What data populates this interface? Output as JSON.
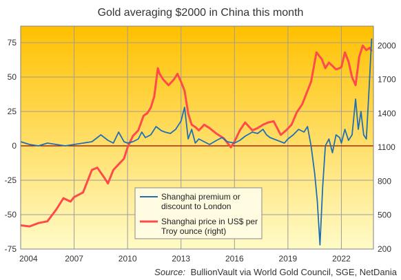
{
  "chart_data": {
    "type": "line",
    "title": "Gold averaging $2000 in China this month",
    "source_label": "Source:",
    "source_text": "BullionVault via World Gold Council, SGE, NetDania",
    "x_ticks": [
      "2004",
      "2007",
      "2010",
      "2013",
      "2016",
      "2019",
      "2022"
    ],
    "y_left": {
      "ticks": [
        "75",
        "50",
        "25",
        "0",
        "-25",
        "-50",
        "-75"
      ],
      "ylim": [
        -75,
        87
      ]
    },
    "y_right": {
      "ticks": [
        "2000",
        "1700",
        "1400",
        "1100",
        "800",
        "500",
        "200"
      ],
      "ylim": [
        200,
        2172
      ]
    },
    "xlim": [
      2004.0,
      2023.8
    ],
    "grid": true,
    "legend_position": "bottom-center",
    "colors": {
      "premium": "#1f6fb2",
      "price": "#ff4a4a",
      "zero_line": "#a00000",
      "bg_top": "#ffc000",
      "bg_bottom": "#fffbc8",
      "grid": "#9c9c9c"
    },
    "series": [
      {
        "name": "Shanghai premium or discount to London",
        "axis": "left",
        "x": [
          2004.0,
          2004.5,
          2005.0,
          2005.5,
          2006.0,
          2006.5,
          2007.0,
          2007.5,
          2008.0,
          2008.5,
          2008.9,
          2009.2,
          2009.5,
          2009.8,
          2010.0,
          2010.3,
          2010.6,
          2010.8,
          2011.0,
          2011.3,
          2011.6,
          2011.9,
          2012.1,
          2012.4,
          2012.7,
          2013.0,
          2013.2,
          2013.4,
          2013.6,
          2013.8,
          2014.0,
          2014.3,
          2014.6,
          2015.0,
          2015.3,
          2015.6,
          2016.0,
          2016.3,
          2016.6,
          2017.0,
          2017.3,
          2017.6,
          2017.8,
          2018.0,
          2018.4,
          2018.8,
          2019.0,
          2019.3,
          2019.6,
          2019.9,
          2020.1,
          2020.3,
          2020.5,
          2020.65,
          2020.8,
          2020.95,
          2021.1,
          2021.3,
          2021.5,
          2021.7,
          2021.9,
          2022.0,
          2022.2,
          2022.4,
          2022.6,
          2022.8,
          2022.95,
          2023.1,
          2023.25,
          2023.4,
          2023.55,
          2023.7
        ],
        "values": [
          3,
          1,
          0,
          2,
          1,
          0,
          1,
          2,
          3,
          8,
          4,
          2,
          10,
          3,
          2,
          3,
          5,
          10,
          6,
          8,
          14,
          11,
          10,
          9,
          12,
          18,
          28,
          5,
          12,
          2,
          5,
          3,
          1,
          4,
          6,
          3,
          2,
          4,
          7,
          10,
          9,
          12,
          8,
          6,
          4,
          2,
          5,
          8,
          12,
          10,
          14,
          0,
          -20,
          -40,
          -72,
          -30,
          0,
          5,
          -5,
          8,
          6,
          2,
          12,
          4,
          8,
          34,
          12,
          25,
          8,
          5,
          40,
          78
        ]
      },
      {
        "name": "Shanghai price in US$ per Troy ounce (right)",
        "axis": "right",
        "x": [
          2004.0,
          2004.5,
          2005.0,
          2005.5,
          2006.0,
          2006.4,
          2006.8,
          2007.0,
          2007.5,
          2008.0,
          2008.3,
          2008.7,
          2008.9,
          2009.2,
          2009.5,
          2009.8,
          2010.0,
          2010.3,
          2010.6,
          2010.9,
          2011.1,
          2011.3,
          2011.5,
          2011.7,
          2011.8,
          2012.0,
          2012.3,
          2012.6,
          2012.8,
          2013.0,
          2013.2,
          2013.4,
          2013.6,
          2013.8,
          2014.0,
          2014.3,
          2014.6,
          2015.0,
          2015.4,
          2015.8,
          2016.0,
          2016.3,
          2016.6,
          2017.0,
          2017.3,
          2017.6,
          2017.9,
          2018.2,
          2018.6,
          2018.9,
          2019.2,
          2019.5,
          2019.8,
          2020.0,
          2020.3,
          2020.6,
          2020.9,
          2021.1,
          2021.3,
          2021.5,
          2021.7,
          2021.9,
          2022.0,
          2022.2,
          2022.4,
          2022.6,
          2022.8,
          2023.0,
          2023.2,
          2023.4,
          2023.6,
          2023.7
        ],
        "values": [
          410,
          400,
          430,
          445,
          550,
          650,
          620,
          660,
          700,
          900,
          920,
          830,
          780,
          900,
          950,
          1000,
          1100,
          1200,
          1250,
          1380,
          1400,
          1450,
          1550,
          1800,
          1750,
          1700,
          1650,
          1700,
          1750,
          1680,
          1600,
          1400,
          1300,
          1280,
          1250,
          1300,
          1270,
          1220,
          1180,
          1100,
          1150,
          1250,
          1320,
          1250,
          1270,
          1300,
          1320,
          1330,
          1210,
          1250,
          1300,
          1410,
          1480,
          1560,
          1680,
          1940,
          1880,
          1800,
          1850,
          1820,
          1790,
          1800,
          1810,
          1940,
          1860,
          1720,
          1650,
          1900,
          2000,
          1960,
          1980,
          1950
        ]
      }
    ]
  }
}
